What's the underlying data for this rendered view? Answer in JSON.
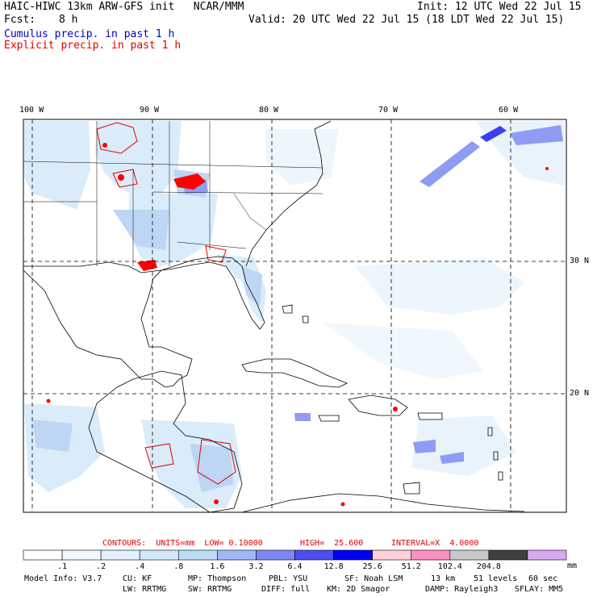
{
  "header": {
    "model_line": "HAIC-HIWC 13km ARW-GFS init   NCAR/MMM",
    "init": "Init: 12 UTC Wed 22 Jul 15",
    "fcst_label": "Fcst:",
    "fcst_value": "8 h",
    "valid": "Valid: 20 UTC Wed 22 Jul 15 (18 LDT Wed 22 Jul 15)",
    "cumulus": "Cumulus precip. in past 1 h",
    "explicit": "Explicit precip. in past 1 h"
  },
  "axes": {
    "lon_labels": [
      "100 W",
      "90 W",
      "80 W",
      "70 W",
      "60 W"
    ],
    "lat_labels": [
      "30 N",
      "20 N"
    ]
  },
  "contours": {
    "units": "CONTOURS:  UNITS=mm  LOW= 0.10000",
    "high": "HIGH=  25.600",
    "interval": "INTERVAL=X  4.0000"
  },
  "colorbar": {
    "levels": [
      ".1",
      ".2",
      ".4",
      ".8",
      "1.6",
      "3.2",
      "6.4",
      "12.8",
      "25.6",
      "51.2",
      "102.4",
      "204.8"
    ],
    "unit": "mm",
    "colors": [
      "#ffffff",
      "#f3f8fd",
      "#e4f0fb",
      "#d2e9fa",
      "#bddcf6",
      "#a3b8f6",
      "#7d88f4",
      "#4d50f0",
      "#0000f0",
      "#ffd0d8",
      "#ff90c0",
      "#c8c8c8",
      "#404040",
      "#d8a8f0"
    ]
  },
  "footer": {
    "row1": [
      "Model Info: V3.7",
      "CU: KF",
      "MP: Thompson",
      "PBL: YSU",
      "SF: Noah LSM",
      "13 km",
      "51 levels",
      "60 sec"
    ],
    "row2": [
      "LW: RRTMG",
      "SW: RRTMG",
      "DIFF: full",
      "KM: 2D Smagor",
      "DAMP: Rayleigh3",
      "SFLAY: MM5"
    ]
  }
}
